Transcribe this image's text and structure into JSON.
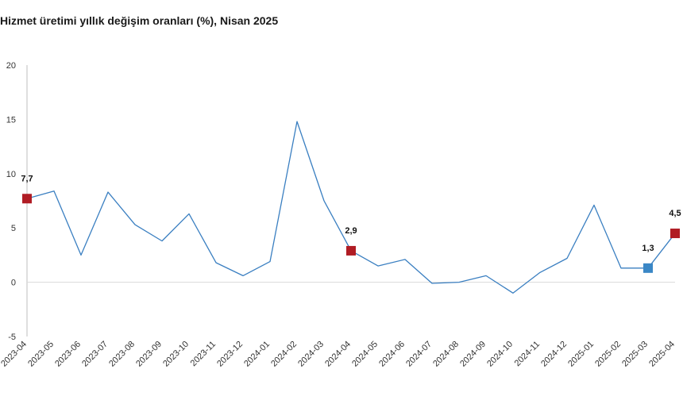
{
  "chart_data": {
    "type": "line",
    "title": "Hizmet üretimi yıllık değişim oranları (%), Nisan 2025",
    "xlabel": "",
    "ylabel": "",
    "ylim": [
      -5,
      20
    ],
    "yticks": [
      "20",
      "15",
      "10",
      "5",
      "0",
      "-5"
    ],
    "ytick_values": [
      20,
      15,
      10,
      5,
      0,
      -5
    ],
    "grid": false,
    "categories": [
      "2023-04",
      "2023-05",
      "2023-06",
      "2023-07",
      "2023-08",
      "2023-09",
      "2023-10",
      "2023-11",
      "2023-12",
      "2024-01",
      "2024-02",
      "2024-03",
      "2024-04",
      "2024-05",
      "2024-06",
      "2024-07",
      "2024-08",
      "2024-09",
      "2024-10",
      "2024-11",
      "2024-12",
      "2025-01",
      "2025-02",
      "2025-03",
      "2025-04"
    ],
    "series": [
      {
        "name": "Hizmet üretimi yıllık değişim",
        "color": "#3a7fc1",
        "values": [
          7.7,
          8.4,
          2.5,
          8.3,
          5.3,
          3.8,
          6.3,
          1.8,
          0.6,
          1.9,
          14.8,
          7.5,
          2.9,
          1.5,
          2.1,
          -0.1,
          0.0,
          0.6,
          -1.0,
          0.9,
          2.2,
          7.1,
          1.3,
          1.3,
          4.5
        ]
      }
    ],
    "highlights": [
      {
        "category": "2023-04",
        "label": "7,7",
        "value": 7.7,
        "color": "#b01c24"
      },
      {
        "category": "2024-04",
        "label": "2,9",
        "value": 2.9,
        "color": "#b01c24"
      },
      {
        "category": "2025-03",
        "label": "1,3",
        "value": 1.3,
        "color": "#3a87c6"
      },
      {
        "category": "2025-04",
        "label": "4,5",
        "value": 4.5,
        "color": "#b01c24"
      }
    ],
    "axis_color": "#bfbfbf"
  }
}
